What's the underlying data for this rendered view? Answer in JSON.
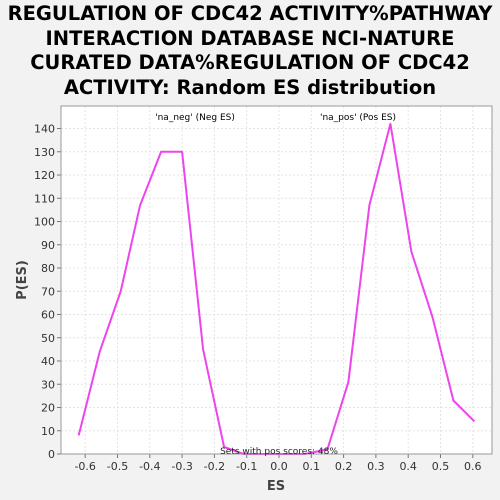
{
  "chart_data": {
    "type": "line",
    "title": "REGULATION OF CDC42 ACTIVITY%PATHWAY INTERACTION DATABASE NCI-NATURE CURATED DATA%REGULATION OF CDC42 ACTIVITY: Random ES distribution",
    "title_lines": [
      "REGULATION OF CDC42 ACTIVITY%PATHWAY",
      "INTERACTION DATABASE NCI-NATURE",
      "CURATED DATA%REGULATION OF CDC42",
      "ACTIVITY: Random ES distribution"
    ],
    "xlabel": "ES",
    "ylabel": "P(ES)",
    "xlim": [
      -0.66,
      0.66
    ],
    "ylim": [
      0,
      145
    ],
    "xticks": [
      -0.6,
      -0.5,
      -0.4,
      -0.3,
      -0.2,
      -0.1,
      0.0,
      0.1,
      0.2,
      0.3,
      0.4,
      0.5,
      0.6
    ],
    "xtick_labels": [
      "-0.6",
      "-0.5",
      "-0.4",
      "-0.3",
      "-0.2",
      "-0.1",
      "0.0",
      "0.1",
      "0.2",
      "0.3",
      "0.4",
      "0.5",
      "0.6"
    ],
    "yticks": [
      0,
      10,
      20,
      30,
      40,
      50,
      60,
      70,
      80,
      90,
      100,
      110,
      120,
      130,
      140
    ],
    "ytick_labels": [
      "0",
      "10",
      "20",
      "30",
      "40",
      "50",
      "60",
      "70",
      "80",
      "90",
      "100",
      "110",
      "120",
      "130",
      "140"
    ],
    "grid": true,
    "series": [
      {
        "name": "distribution",
        "color": "#ee44ee",
        "x": [
          -0.62,
          -0.555,
          -0.49,
          -0.43,
          -0.365,
          -0.3,
          -0.235,
          -0.17,
          -0.11,
          -0.045,
          0.02,
          0.08,
          0.15,
          0.215,
          0.28,
          0.345,
          0.41,
          0.475,
          0.54,
          0.605
        ],
        "y": [
          8,
          44,
          70,
          107,
          130,
          130,
          45,
          3,
          0,
          0,
          0,
          0,
          2,
          31,
          107,
          142,
          87,
          59,
          23,
          14
        ]
      }
    ],
    "legend": [
      {
        "label": "'na_neg' (Neg ES)",
        "color": "#3333cc"
      },
      {
        "label": "'na_pos' (Pos ES)",
        "color": "#dd2222"
      }
    ],
    "annotation": "Sets with pos scores: 48%"
  }
}
